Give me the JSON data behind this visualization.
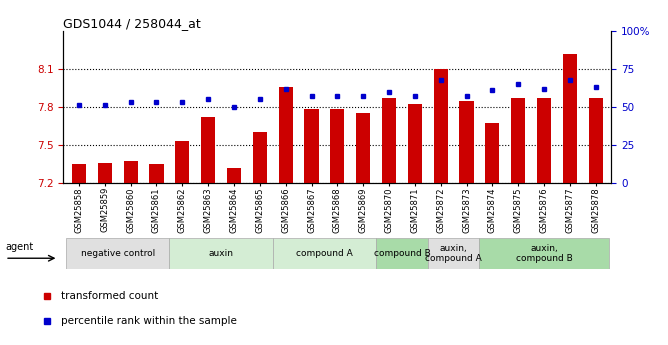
{
  "title": "GDS1044 / 258044_at",
  "samples": [
    "GSM25858",
    "GSM25859",
    "GSM25860",
    "GSM25861",
    "GSM25862",
    "GSM25863",
    "GSM25864",
    "GSM25865",
    "GSM25866",
    "GSM25867",
    "GSM25868",
    "GSM25869",
    "GSM25870",
    "GSM25871",
    "GSM25872",
    "GSM25873",
    "GSM25874",
    "GSM25875",
    "GSM25876",
    "GSM25877",
    "GSM25878"
  ],
  "bar_values": [
    7.35,
    7.36,
    7.37,
    7.35,
    7.53,
    7.72,
    7.32,
    7.6,
    7.96,
    7.78,
    7.78,
    7.75,
    7.87,
    7.82,
    8.1,
    7.85,
    7.67,
    7.87,
    7.87,
    8.22,
    7.87
  ],
  "percentile_values": [
    51,
    51,
    53,
    53,
    53,
    55,
    50,
    55,
    62,
    57,
    57,
    57,
    60,
    57,
    68,
    57,
    61,
    65,
    62,
    68,
    63
  ],
  "ylim_left": [
    7.2,
    8.4
  ],
  "ylim_right": [
    0,
    100
  ],
  "yticks_left": [
    7.2,
    7.5,
    7.8,
    8.1
  ],
  "yticks_right": [
    0,
    25,
    50,
    75,
    100
  ],
  "bar_color": "#CC0000",
  "dot_color": "#0000CC",
  "groups": [
    {
      "label": "negative control",
      "start": 0,
      "end": 3,
      "color": "#e0e0e0"
    },
    {
      "label": "auxin",
      "start": 4,
      "end": 7,
      "color": "#d4edd4"
    },
    {
      "label": "compound A",
      "start": 8,
      "end": 11,
      "color": "#d4edd4"
    },
    {
      "label": "compound B",
      "start": 12,
      "end": 13,
      "color": "#a8dba8"
    },
    {
      "label": "auxin,\ncompound A",
      "start": 14,
      "end": 15,
      "color": "#e0e0e0"
    },
    {
      "label": "auxin,\ncompound B",
      "start": 16,
      "end": 20,
      "color": "#a8dba8"
    }
  ],
  "bar_color_left": "#CC0000",
  "tick_color_left": "#CC0000",
  "tick_color_right": "#0000CC",
  "legend_items": [
    {
      "label": "transformed count",
      "color": "#CC0000"
    },
    {
      "label": "percentile rank within the sample",
      "color": "#0000CC"
    }
  ]
}
